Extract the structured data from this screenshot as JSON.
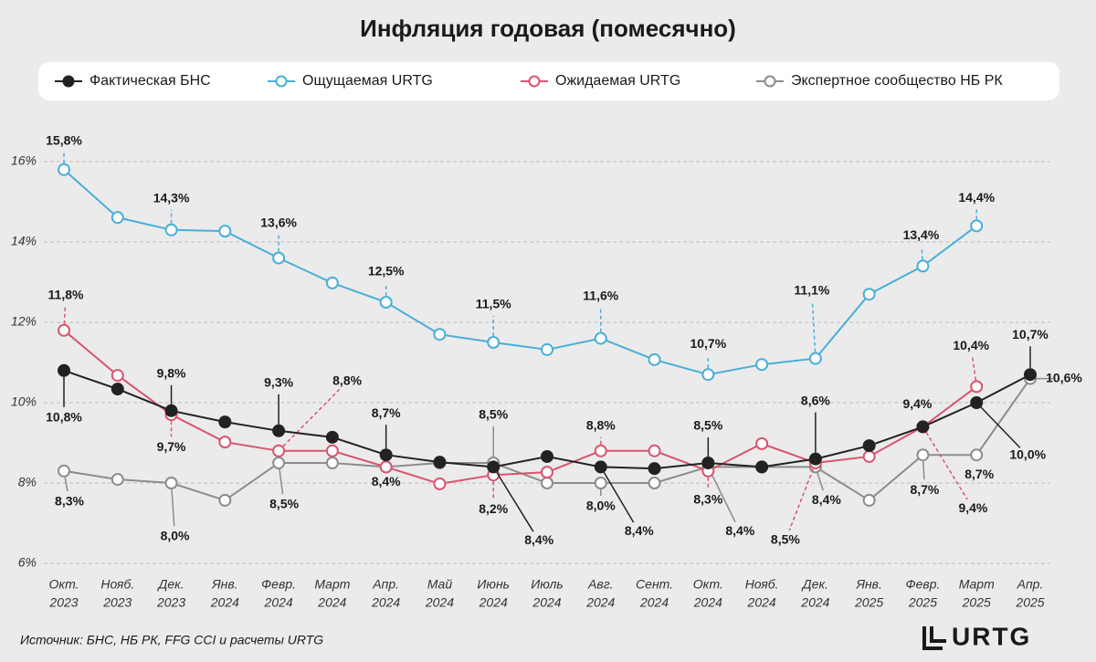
{
  "chart_data": {
    "type": "line",
    "title": "Инфляция годовая (помесячно)",
    "source": "Источник: БНС, НБ РК, FFG CCI и расчеты URTG",
    "brand": "URTG",
    "categories": [
      [
        "Окт.",
        "2023"
      ],
      [
        "Нояб.",
        "2023"
      ],
      [
        "Дек.",
        "2023"
      ],
      [
        "Янв.",
        "2024"
      ],
      [
        "Февр.",
        "2024"
      ],
      [
        "Март",
        "2024"
      ],
      [
        "Апр.",
        "2024"
      ],
      [
        "Май",
        "2024"
      ],
      [
        "Июнь",
        "2024"
      ],
      [
        "Июль",
        "2024"
      ],
      [
        "Авг.",
        "2024"
      ],
      [
        "Сент.",
        "2024"
      ],
      [
        "Окт.",
        "2024"
      ],
      [
        "Нояб.",
        "2024"
      ],
      [
        "Дек.",
        "2024"
      ],
      [
        "Янв.",
        "2025"
      ],
      [
        "Февр.",
        "2025"
      ],
      [
        "Март",
        "2025"
      ],
      [
        "Апр.",
        "2025"
      ]
    ],
    "ylim": [
      6,
      16.6
    ],
    "yticks": [
      {
        "value": 6,
        "label": "6%"
      },
      {
        "value": 8,
        "label": "8%"
      },
      {
        "value": 10,
        "label": "10%"
      },
      {
        "value": 12,
        "label": "12%"
      },
      {
        "value": 14,
        "label": "14%"
      },
      {
        "value": 16,
        "label": "16%"
      }
    ],
    "grid": true,
    "series": [
      {
        "name": "Фактическая БНС",
        "color": "#222222",
        "values": [
          10.8,
          10.34,
          9.8,
          9.52,
          9.3,
          9.14,
          8.7,
          8.52,
          8.4,
          8.66,
          8.4,
          8.36,
          8.5,
          8.4,
          8.6,
          8.93,
          9.4,
          10.0,
          10.7
        ],
        "value_labels": [
          "10,8%",
          null,
          "9,8%",
          null,
          "9,3%",
          null,
          "8,7%",
          null,
          "8,4%",
          null,
          "8,4%",
          null,
          "8,5%",
          null,
          "8,6%",
          null,
          "9,4%",
          "10,0%",
          "10,7%"
        ]
      },
      {
        "name": "Ощущаемая URTG",
        "color": "#4aaed9",
        "values": [
          15.8,
          14.61,
          14.3,
          14.27,
          13.6,
          12.98,
          12.5,
          11.7,
          11.5,
          11.32,
          11.6,
          11.07,
          10.7,
          10.95,
          11.1,
          12.7,
          13.4,
          14.4,
          null
        ],
        "value_labels": [
          "15,8%",
          null,
          "14,3%",
          null,
          "13,6%",
          null,
          "12,5%",
          null,
          "11,5%",
          null,
          "11,6%",
          null,
          "10,7%",
          null,
          "11,1%",
          null,
          "13,4%",
          "14,4%",
          null
        ]
      },
      {
        "name": "Ожидаемая URTG",
        "color": "#d9546e",
        "values": [
          11.8,
          10.68,
          9.7,
          9.02,
          8.8,
          8.8,
          8.4,
          7.98,
          8.2,
          8.27,
          8.8,
          8.8,
          8.3,
          8.98,
          8.5,
          8.66,
          9.4,
          10.4,
          null
        ],
        "value_labels": [
          "11,8%",
          null,
          "9,7%",
          null,
          "8,8%",
          null,
          "8,4%",
          null,
          "8,2%",
          null,
          "8,8%",
          null,
          "8,3%",
          null,
          "8,5%",
          null,
          "9,4%",
          "10,4%",
          null
        ]
      },
      {
        "name": "Экспертное сообщество НБ РК",
        "color": "#8c8c8c",
        "values": [
          8.3,
          8.09,
          8.0,
          7.57,
          8.5,
          8.5,
          8.4,
          8.5,
          8.5,
          8.0,
          8.0,
          8.0,
          8.4,
          8.4,
          8.4,
          7.57,
          8.7,
          8.7,
          10.6
        ],
        "value_labels": [
          "8,3%",
          null,
          "8,0%",
          null,
          "8,5%",
          null,
          null,
          null,
          "8,5%",
          null,
          "8,0%",
          null,
          "8,4%",
          null,
          "8,4%",
          null,
          "8,7%",
          "8,7%",
          "10,6%"
        ]
      }
    ]
  }
}
